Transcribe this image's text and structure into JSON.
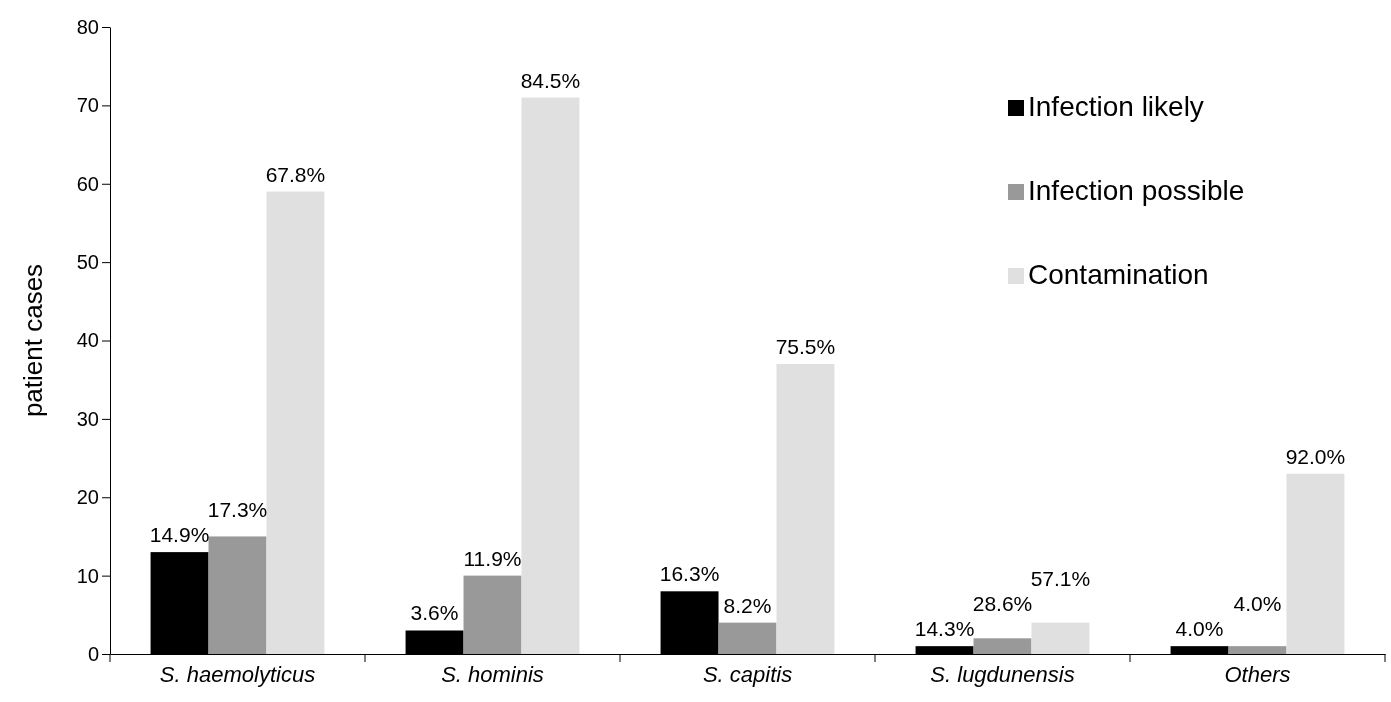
{
  "chart_data": {
    "type": "bar",
    "ylabel": "patient cases",
    "categories": [
      "S. haemolyticus",
      "S. hominis",
      "S. capitis",
      "S. lugdunensis",
      "Others"
    ],
    "series": [
      {
        "name": "Infection likely",
        "color": "#000000",
        "values": [
          13,
          3,
          8,
          1,
          1
        ]
      },
      {
        "name": "Infection possible",
        "color": "#999999",
        "values": [
          15,
          10,
          4,
          2,
          1
        ]
      },
      {
        "name": "Contamination",
        "color": "#e0e0e0",
        "values": [
          59,
          71,
          37,
          4,
          23
        ]
      }
    ],
    "annotations": [
      "14.9%",
      "17.3%",
      "67.8%",
      "3.6%",
      "11.9%",
      "84.5%",
      "16.3%",
      "8.2%",
      "75.5%",
      "14.3%",
      "28.6%",
      "57.1%",
      "4.0%",
      "4.0%",
      "92.0%"
    ],
    "ylim": [
      0,
      80
    ],
    "yticks": [
      0,
      10,
      20,
      30,
      40,
      50,
      60,
      70,
      80
    ],
    "grid": false,
    "legend": "top right"
  }
}
